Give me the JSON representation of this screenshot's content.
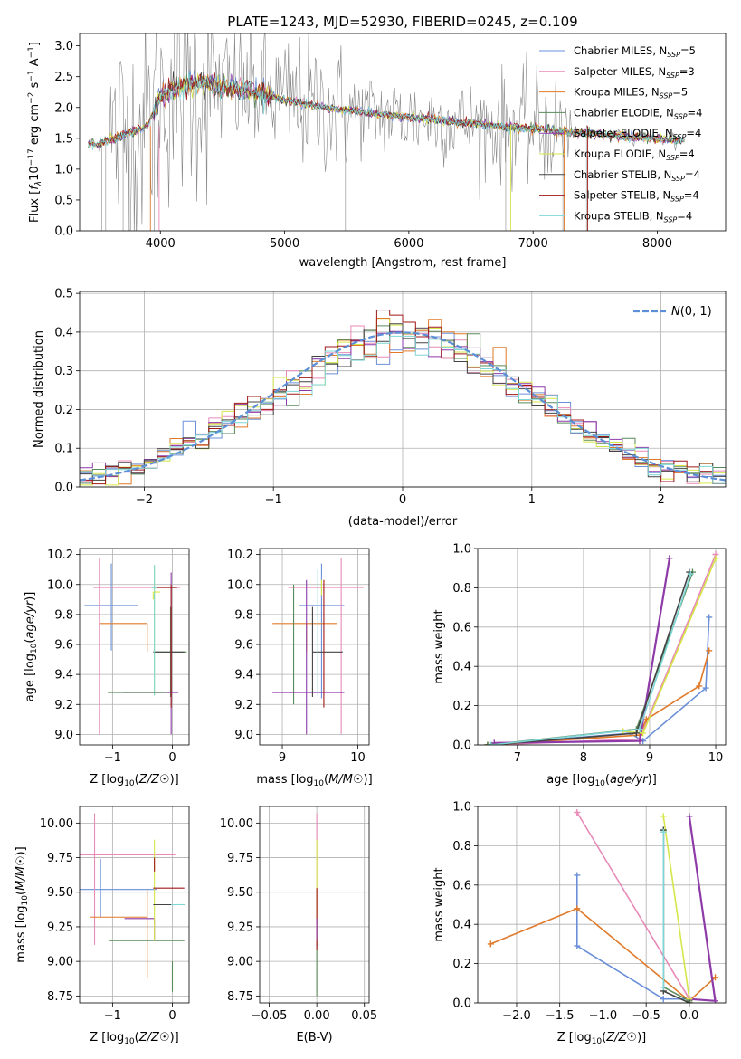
{
  "title": "PLATE=1243, MJD=52930, FIBERID=0245, z=0.109",
  "colors": {
    "Chabrier MILES": "#6a8fd8",
    "Salpeter MILES": "#e88ab8",
    "Kroupa MILES": "#e07a2a",
    "Chabrier ELODIE": "#5a8a5a",
    "Salpeter ELODIE": "#8e3aa8",
    "Kroupa ELODIE": "#d6e64a",
    "Chabrier STELIB": "#444444",
    "Salpeter STELIB": "#a01818",
    "Kroupa STELIB": "#7fd6d6",
    "gaussian": "#5b8fd6",
    "data": "#888888"
  },
  "chart_data": [
    {
      "id": "spectrum",
      "type": "line",
      "xlabel": "wavelength [Angstrom, rest frame]",
      "ylabel": "Flux [f_λ 10^-17 erg cm^-2 s^-1 A^-1]",
      "xlim": [
        3350,
        8550
      ],
      "ylim": [
        0,
        3.2
      ],
      "xticks": [
        4000,
        5000,
        6000,
        7000,
        8000
      ],
      "yticks": [
        0.0,
        0.5,
        1.0,
        1.5,
        2.0,
        2.5,
        3.0
      ],
      "grid": false,
      "legend_position": "top-right",
      "legend": [
        {
          "name": "Chabrier MILES",
          "nssp": "5"
        },
        {
          "name": "Salpeter MILES",
          "nssp": "3"
        },
        {
          "name": "Kroupa MILES",
          "nssp": "5"
        },
        {
          "name": "Chabrier ELODIE",
          "nssp": "4"
        },
        {
          "name": "Salpeter ELODIE",
          "nssp": "4"
        },
        {
          "name": "Kroupa ELODIE",
          "nssp": "4"
        },
        {
          "name": "Chabrier STELIB",
          "nssp": "4"
        },
        {
          "name": "Salpeter STELIB",
          "nssp": "4"
        },
        {
          "name": "Kroupa STELIB",
          "nssp": "4"
        }
      ],
      "model_continuum": {
        "x": [
          3420,
          3500,
          3550,
          3650,
          3700,
          3800,
          3900,
          3950,
          4000,
          4100,
          4200,
          4300,
          4400,
          4500,
          4600,
          4700,
          4800,
          4900,
          5000,
          5200,
          5400,
          5600,
          5800,
          6000,
          6200,
          6400,
          6600,
          6800,
          7000,
          7200,
          7400,
          7600,
          7800,
          8000,
          8200
        ],
        "y": [
          1.42,
          1.4,
          1.46,
          1.5,
          1.55,
          1.62,
          1.72,
          1.95,
          2.2,
          2.3,
          2.36,
          2.4,
          2.38,
          2.34,
          2.3,
          2.28,
          2.22,
          2.18,
          2.12,
          2.05,
          1.98,
          1.93,
          1.88,
          1.84,
          1.8,
          1.76,
          1.72,
          1.68,
          1.66,
          1.62,
          1.58,
          1.55,
          1.52,
          1.5,
          1.46
        ]
      }
    },
    {
      "id": "residuals",
      "type": "line",
      "xlabel": "(data-model)/error",
      "ylabel": "Normed distribution",
      "xlim": [
        -2.5,
        2.5
      ],
      "ylim": [
        0,
        0.505
      ],
      "xticks": [
        -2,
        -1,
        0,
        1,
        2
      ],
      "yticks": [
        0.0,
        0.1,
        0.2,
        0.3,
        0.4,
        0.5
      ],
      "grid": true,
      "legend_position": "top-right",
      "legend": [
        "N(0,1)"
      ],
      "histogram_shape": {
        "x": [
          -2.5,
          -2.0,
          -1.5,
          -1.0,
          -0.5,
          0.0,
          0.5,
          1.0,
          1.5,
          2.0,
          2.5
        ],
        "y": [
          0.025,
          0.05,
          0.14,
          0.22,
          0.34,
          0.4,
          0.35,
          0.24,
          0.13,
          0.05,
          0.025
        ]
      }
    },
    {
      "id": "age-vs-Z",
      "type": "scatter",
      "xlabel": "Z [log10(Z/Z☉)]",
      "ylabel": "age  [log10(age/yr)]",
      "xlim": [
        -1.55,
        0.28
      ],
      "ylim": [
        8.93,
        10.24
      ],
      "xticks": [
        -1,
        0
      ],
      "yticks": [
        9.0,
        9.2,
        9.4,
        9.6,
        9.8,
        10.0,
        10.2
      ],
      "grid": true,
      "points": [
        {
          "model": "Chabrier MILES",
          "x": -1.02,
          "xerr": [
            0.45,
            0.45
          ],
          "y": 9.86,
          "yerr": [
            0.3,
            0.28
          ]
        },
        {
          "model": "Salpeter MILES",
          "x": -1.22,
          "xerr": [
            0.1,
            1.35
          ],
          "y": 9.98,
          "yerr": [
            0.98,
            0.2
          ]
        },
        {
          "model": "Kroupa MILES",
          "x": -0.42,
          "xerr": [
            0.8,
            0.0
          ],
          "y": 9.74,
          "yerr": [
            0.19,
            0.0
          ]
        },
        {
          "model": "Chabrier ELODIE",
          "x": -0.03,
          "xerr": [
            0.27,
            0.27
          ],
          "y": 9.55,
          "yerr": [
            0.3,
            0.3
          ]
        },
        {
          "model": "Salpeter ELODIE",
          "x": -0.02,
          "xerr": [
            0.8,
            0.12
          ],
          "y": 9.28,
          "yerr": [
            0.28,
            0.8
          ]
        },
        {
          "model": "Kroupa ELODIE",
          "x": -0.3,
          "xerr": [
            0.05,
            0.05
          ],
          "y": 9.98,
          "yerr": [
            0.72,
            0.15
          ]
        },
        {
          "model": "Chabrier STELIB",
          "x": -0.02,
          "xerr": [
            0.3,
            0.22
          ],
          "y": 9.55,
          "yerr": [
            0.3,
            0.3
          ]
        },
        {
          "model": "Salpeter STELIB",
          "x": -0.02,
          "xerr": [
            0.3,
            0.1
          ],
          "y": 9.98,
          "yerr": [
            0.8,
            0.02
          ]
        },
        {
          "model": "Kroupa STELIB",
          "x": -0.3,
          "xerr": [
            0.05,
            0.05
          ],
          "y": 9.98,
          "yerr": [
            0.72,
            0.15
          ]
        },
        {
          "model": "Chabrier ELODIE",
          "x": -0.78,
          "xerr": [
            0.3,
            0.7
          ],
          "y": 9.28,
          "yerr": [
            0.0,
            0.0
          ]
        },
        {
          "model": "Kroupa ELODIE",
          "x": -0.32,
          "xerr": [
            0.0,
            0.12
          ],
          "y": 9.95,
          "yerr": [
            0.05,
            0.0
          ]
        }
      ]
    },
    {
      "id": "age-vs-mass",
      "type": "scatter",
      "xlabel": "mass [log10(M/M☉)]",
      "ylabel": "",
      "xlim": [
        8.7,
        10.15
      ],
      "ylim": [
        8.93,
        10.24
      ],
      "xticks": [
        9,
        10
      ],
      "yticks": [
        9.0,
        9.2,
        9.4,
        9.6,
        9.8,
        10.0,
        10.2
      ],
      "grid": true,
      "points": [
        {
          "model": "Chabrier MILES",
          "x": 9.52,
          "xerr": [
            0.3,
            0.3
          ],
          "y": 9.86,
          "yerr": [
            0.62,
            0.28
          ]
        },
        {
          "model": "Salpeter MILES",
          "x": 9.78,
          "xerr": [
            0.7,
            0.3
          ],
          "y": 9.98,
          "yerr": [
            0.98,
            0.2
          ]
        },
        {
          "model": "Kroupa MILES",
          "x": 9.32,
          "xerr": [
            0.45,
            0.4
          ],
          "y": 9.74,
          "yerr": [
            0.19,
            0.0
          ]
        },
        {
          "model": "Chabrier ELODIE",
          "x": 9.15,
          "xerr": [
            0.0,
            0.0
          ],
          "y": 9.55,
          "yerr": [
            0.35,
            0.45
          ]
        },
        {
          "model": "Salpeter ELODIE",
          "x": 9.32,
          "xerr": [
            0.45,
            0.5
          ],
          "y": 9.28,
          "yerr": [
            0.28,
            0.75
          ]
        },
        {
          "model": "Kroupa ELODIE",
          "x": 9.52,
          "xerr": [
            0.0,
            0.0
          ],
          "y": 9.98,
          "yerr": [
            0.05,
            0.05
          ]
        },
        {
          "model": "Chabrier STELIB",
          "x": 9.4,
          "xerr": [
            0.0,
            0.4
          ],
          "y": 9.55,
          "yerr": [
            0.3,
            0.3
          ]
        },
        {
          "model": "Salpeter STELIB",
          "x": 9.55,
          "xerr": [
            0.0,
            0.0
          ],
          "y": 9.98,
          "yerr": [
            0.8,
            0.05
          ]
        },
        {
          "model": "Kroupa STELIB",
          "x": 9.47,
          "xerr": [
            0.0,
            0.0
          ],
          "y": 9.98,
          "yerr": [
            0.72,
            0.12
          ]
        }
      ]
    },
    {
      "id": "weight-vs-age",
      "type": "line",
      "xlabel": "age  [log10(age/yr)]",
      "ylabel": "mass weight",
      "xlim": [
        6.4,
        10.15
      ],
      "ylim": [
        0,
        1.0
      ],
      "xticks": [
        7,
        8,
        9,
        10
      ],
      "yticks": [
        0.0,
        0.2,
        0.4,
        0.6,
        0.8,
        1.0
      ],
      "grid": true,
      "series": [
        {
          "model": "Chabrier MILES",
          "x": [
            6.55,
            8.7,
            8.9,
            9.85,
            9.9
          ],
          "y": [
            0.0,
            0.06,
            0.02,
            0.29,
            0.65
          ]
        },
        {
          "model": "Salpeter MILES",
          "x": [
            6.6,
            8.85,
            10.0
          ],
          "y": [
            0.0,
            0.03,
            0.97
          ]
        },
        {
          "model": "Kroupa MILES",
          "x": [
            6.55,
            8.85,
            8.95,
            9.75,
            9.9
          ],
          "y": [
            0.0,
            0.05,
            0.13,
            0.3,
            0.48
          ]
        },
        {
          "model": "Chabrier ELODIE",
          "x": [
            6.55,
            8.8,
            9.65
          ],
          "y": [
            0.0,
            0.08,
            0.88
          ]
        },
        {
          "model": "Salpeter ELODIE",
          "x": [
            6.65,
            8.85,
            9.3
          ],
          "y": [
            0.01,
            0.02,
            0.95
          ]
        },
        {
          "model": "Kroupa ELODIE",
          "x": [
            8.6,
            8.9,
            10.0
          ],
          "y": [
            0.07,
            0.06,
            0.95
          ]
        },
        {
          "model": "Chabrier STELIB",
          "x": [
            6.6,
            8.8,
            9.6
          ],
          "y": [
            0.0,
            0.06,
            0.88
          ]
        },
        {
          "model": "Kroupa STELIB",
          "x": [
            6.6,
            8.85,
            9.62
          ],
          "y": [
            0.0,
            0.08,
            0.87
          ]
        }
      ]
    },
    {
      "id": "mass-vs-Z",
      "type": "scatter",
      "xlabel": "Z [log10(Z/Z☉)]",
      "ylabel": "mass [log10(M/M☉)]",
      "xlim": [
        -1.55,
        0.28
      ],
      "ylim": [
        8.7,
        10.12
      ],
      "xticks": [
        -1,
        0
      ],
      "yticks": [
        8.75,
        9.0,
        9.25,
        9.5,
        9.75,
        10.0
      ],
      "grid": true,
      "points": [
        {
          "model": "Chabrier MILES",
          "x": -1.2,
          "xerr": [
            0.35,
            0.95
          ],
          "y": 9.52,
          "yerr": [
            0.2,
            0.22
          ]
        },
        {
          "model": "Salpeter MILES",
          "x": -1.3,
          "xerr": [
            0.25,
            1.35
          ],
          "y": 9.77,
          "yerr": [
            0.65,
            0.3
          ]
        },
        {
          "model": "Kroupa MILES",
          "x": -0.42,
          "xerr": [
            0.95,
            0.0
          ],
          "y": 9.32,
          "yerr": [
            0.44,
            0.2
          ]
        },
        {
          "model": "Chabrier ELODIE",
          "x": -0.3,
          "xerr": [
            0.75,
            0.5
          ],
          "y": 9.15,
          "yerr": [
            0.0,
            0.0
          ]
        },
        {
          "model": "Salpeter ELODIE",
          "x": -0.3,
          "xerr": [
            0.5,
            0.0
          ],
          "y": 9.31,
          "yerr": [
            0.15,
            0.0
          ]
        },
        {
          "model": "Kroupa ELODIE",
          "x": -0.3,
          "xerr": [
            0.0,
            0.0
          ],
          "y": 9.7,
          "yerr": [
            0.55,
            0.18
          ]
        },
        {
          "model": "Chabrier STELIB",
          "x": -0.02,
          "xerr": [
            0.3,
            0.22
          ],
          "y": 9.41,
          "yerr": [
            0.0,
            0.0
          ]
        },
        {
          "model": "Salpeter STELIB",
          "x": -0.02,
          "xerr": [
            0.3,
            0.22
          ],
          "y": 9.53,
          "yerr": [
            0.0,
            0.0
          ]
        },
        {
          "model": "Kroupa STELIB",
          "x": -0.02,
          "xerr": [
            0.0,
            0.22
          ],
          "y": 9.41,
          "yerr": [
            0.0,
            0.0
          ]
        },
        {
          "model": "Chabrier ELODIE",
          "x": 0.0,
          "xerr": [
            0.0,
            0.0
          ],
          "y": 9.0,
          "yerr": [
            0.22,
            0.0
          ]
        },
        {
          "model": "Salpeter STELIB",
          "x": -0.3,
          "xerr": [
            0.0,
            0.0
          ],
          "y": 9.7,
          "yerr": [
            0.05,
            0.05
          ]
        }
      ]
    },
    {
      "id": "mass-vs-EBV",
      "type": "scatter",
      "xlabel": "E(B-V)",
      "ylabel": "",
      "xlim": [
        -0.06,
        0.055
      ],
      "ylim": [
        8.7,
        10.12
      ],
      "xticks": [
        -0.05,
        0.0,
        0.05
      ],
      "yticks": [
        8.75,
        9.0,
        9.25,
        9.5,
        9.75,
        10.0
      ],
      "grid": true,
      "points": [
        {
          "model": "Salpeter MILES",
          "x": 0.0,
          "y": 9.77,
          "yerr": [
            0.65,
            0.3
          ]
        },
        {
          "model": "Kroupa ELODIE",
          "x": 0.0,
          "y": 9.7,
          "yerr": [
            0.55,
            0.18
          ]
        },
        {
          "model": "Chabrier ELODIE",
          "x": 0.0,
          "y": 9.15,
          "yerr": [
            0.4,
            0.0
          ]
        },
        {
          "model": "Salpeter STELIB",
          "x": 0.0,
          "y": 9.53,
          "yerr": [
            0.45,
            0.0
          ]
        },
        {
          "model": "Salpeter ELODIE",
          "x": 0.0,
          "y": 9.31,
          "yerr": [
            0.15,
            0.0
          ]
        }
      ]
    },
    {
      "id": "weight-vs-Z",
      "type": "line",
      "xlabel": "Z [log10(Z/Z☉)]",
      "ylabel": "mass weight",
      "xlim": [
        -2.45,
        0.42
      ],
      "ylim": [
        0,
        1.0
      ],
      "xticks": [
        -2.0,
        -1.5,
        -1.0,
        -0.5,
        0.0
      ],
      "yticks": [
        0.0,
        0.2,
        0.4,
        0.6,
        0.8,
        1.0
      ],
      "grid": true,
      "series": [
        {
          "model": "Chabrier MILES",
          "x": [
            -1.3,
            -1.3,
            -0.3,
            0.0
          ],
          "y": [
            0.65,
            0.29,
            0.02,
            0.02
          ]
        },
        {
          "model": "Salpeter MILES",
          "x": [
            -1.3,
            0.0
          ],
          "y": [
            0.97,
            0.02
          ]
        },
        {
          "model": "Kroupa MILES",
          "x": [
            -2.3,
            -1.3,
            0.0,
            0.3
          ],
          "y": [
            0.3,
            0.48,
            0.01,
            0.13
          ]
        },
        {
          "model": "Chabrier ELODIE",
          "x": [
            -0.3,
            -0.3,
            0.0
          ],
          "y": [
            0.88,
            0.08,
            0.01
          ]
        },
        {
          "model": "Salpeter ELODIE",
          "x": [
            0.0,
            0.3,
            0.0
          ],
          "y": [
            0.95,
            0.01,
            0.02
          ]
        },
        {
          "model": "Kroupa ELODIE",
          "x": [
            -0.3,
            0.0
          ],
          "y": [
            0.95,
            0.02
          ]
        },
        {
          "model": "Chabrier STELIB",
          "x": [
            -0.3,
            -0.3,
            0.0
          ],
          "y": [
            0.88,
            0.06,
            0.0
          ]
        },
        {
          "model": "Kroupa STELIB",
          "x": [
            -0.3,
            -0.3
          ],
          "y": [
            0.87,
            0.08
          ]
        }
      ]
    }
  ]
}
